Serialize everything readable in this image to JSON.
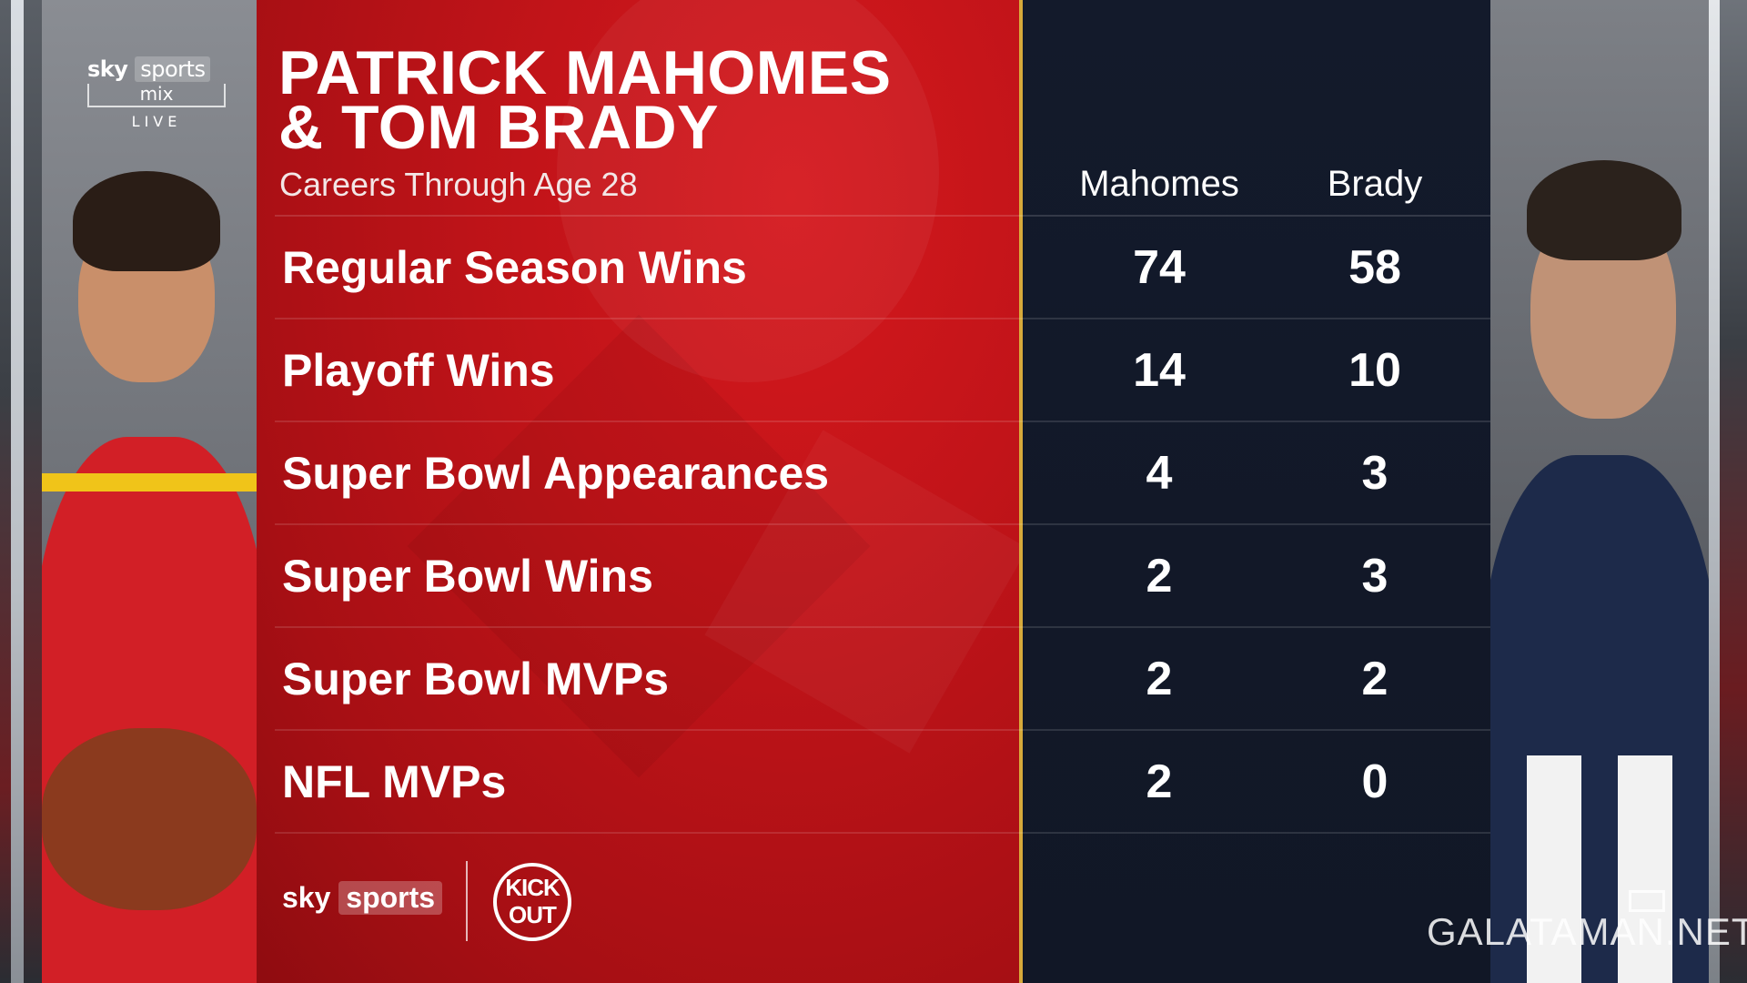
{
  "broadcast_bug": {
    "brand": "sky",
    "brand_box": "sports",
    "channel": "mix",
    "status": "LIVE"
  },
  "graphic": {
    "title_line1": "PATRICK MAHOMES",
    "title_line2": "& TOM BRADY",
    "subtitle": "Careers Through Age 28",
    "columns": [
      "Mahomes",
      "Brady"
    ],
    "rows": [
      {
        "label": "Regular Season Wins",
        "mahomes": "74",
        "brady": "58"
      },
      {
        "label": "Playoff Wins",
        "mahomes": "14",
        "brady": "10"
      },
      {
        "label": "Super Bowl Appearances",
        "mahomes": "4",
        "brady": "3"
      },
      {
        "label": "Super Bowl Wins",
        "mahomes": "2",
        "brady": "3"
      },
      {
        "label": "Super Bowl MVPs",
        "mahomes": "2",
        "brady": "2"
      },
      {
        "label": "NFL MVPs",
        "mahomes": "2",
        "brady": "0"
      }
    ]
  },
  "footer": {
    "sky": "sky",
    "sports": "sports",
    "kickout": "KICK OUT"
  },
  "watermark": "GALATAMAN.NET",
  "colors": {
    "red_panel": "#c21419",
    "dark_panel": "#131a2b",
    "gold_line": "#d7a93a"
  }
}
